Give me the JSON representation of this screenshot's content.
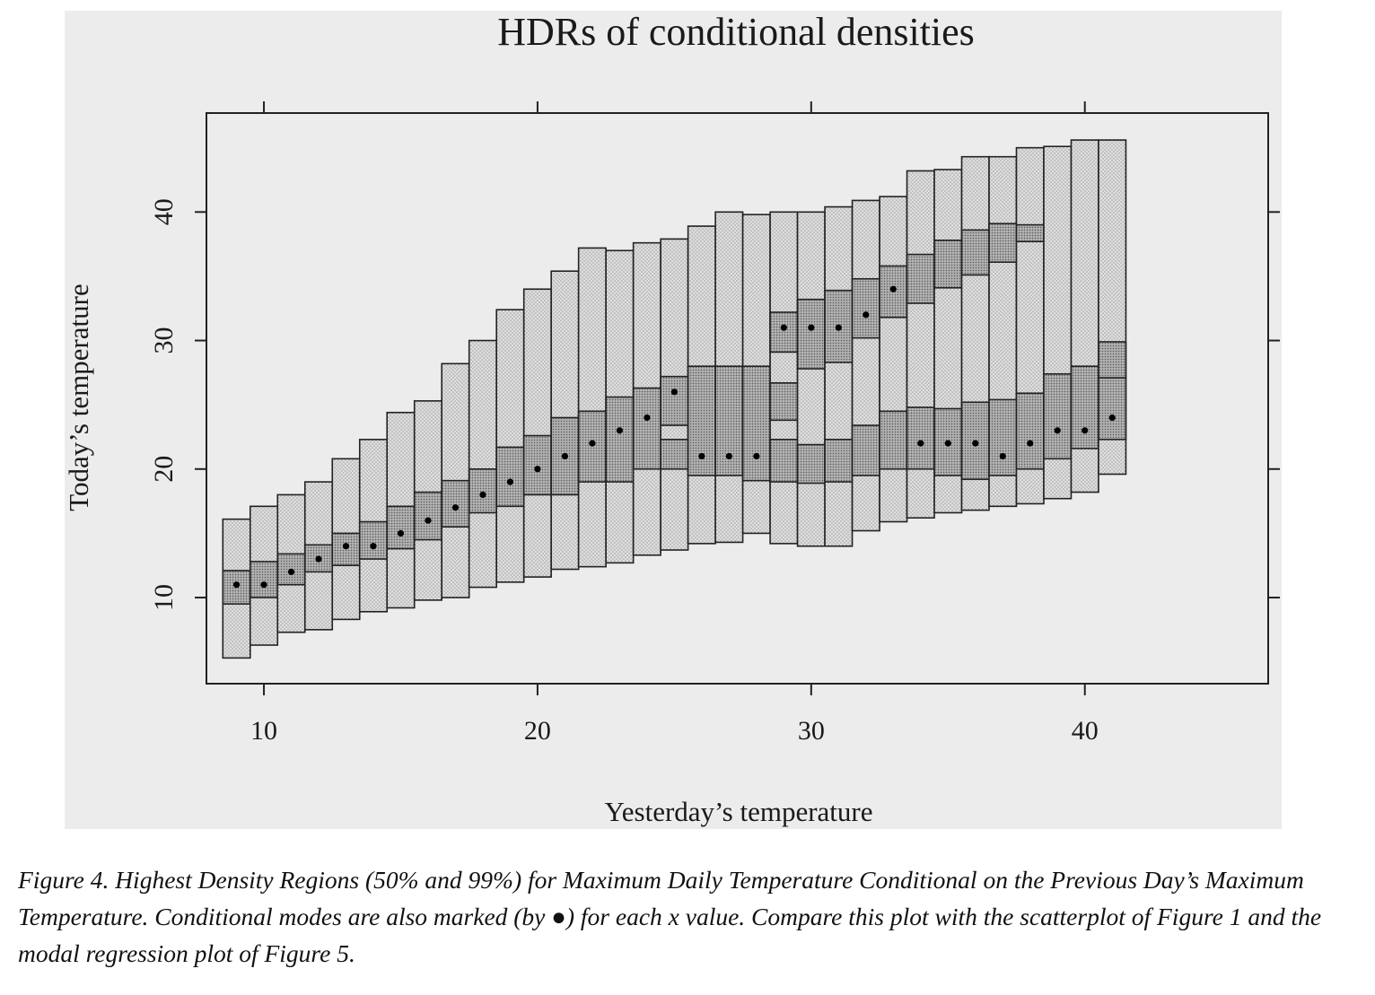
{
  "figure": {
    "caption": "Figure 4.  Highest Density Regions (50% and 99%) for Maximum Daily Temperature Conditional on the Previous Day’s Maximum Temperature. Conditional modes are also marked (by ●) for each x value. Compare this plot with the scatterplot of Figure 1 and the modal regression plot of Figure 5."
  },
  "chart_data": {
    "type": "hdr-boxplot",
    "title": "HDRs of conditional densities",
    "xlabel": "Yesterday’s temperature",
    "ylabel": "Today’s temperature",
    "xlim": [
      7.9,
      46.7
    ],
    "ylim": [
      3.3,
      47.7
    ],
    "x_ticks": [
      10,
      20,
      30,
      40
    ],
    "y_ticks": [
      10,
      20,
      30,
      40
    ],
    "grid": false,
    "colors": {
      "hdr99": "#d9d9d9",
      "hdr50": "#a8a8a8",
      "mode": "#000000",
      "axis": "#222222"
    },
    "bin_width": 1,
    "bins": [
      {
        "x": 9,
        "hdr99": [
          [
            5.3,
            16.1
          ]
        ],
        "hdr50": [
          [
            9.5,
            12.1
          ]
        ],
        "modes": [
          11.0
        ]
      },
      {
        "x": 10,
        "hdr99": [
          [
            6.3,
            17.1
          ]
        ],
        "hdr50": [
          [
            10.0,
            12.8
          ]
        ],
        "modes": [
          11.0
        ]
      },
      {
        "x": 11,
        "hdr99": [
          [
            7.3,
            18.0
          ]
        ],
        "hdr50": [
          [
            11.0,
            13.4
          ]
        ],
        "modes": [
          12.0
        ]
      },
      {
        "x": 12,
        "hdr99": [
          [
            7.5,
            19.0
          ]
        ],
        "hdr50": [
          [
            12.0,
            14.1
          ]
        ],
        "modes": [
          13.0
        ]
      },
      {
        "x": 13,
        "hdr99": [
          [
            8.3,
            20.8
          ]
        ],
        "hdr50": [
          [
            12.5,
            15.0
          ]
        ],
        "modes": [
          14.0
        ]
      },
      {
        "x": 14,
        "hdr99": [
          [
            8.9,
            22.3
          ]
        ],
        "hdr50": [
          [
            13.0,
            15.9
          ]
        ],
        "modes": [
          14.0
        ]
      },
      {
        "x": 15,
        "hdr99": [
          [
            9.2,
            24.4
          ]
        ],
        "hdr50": [
          [
            13.8,
            17.1
          ]
        ],
        "modes": [
          15.0
        ]
      },
      {
        "x": 16,
        "hdr99": [
          [
            9.8,
            25.3
          ]
        ],
        "hdr50": [
          [
            14.5,
            18.2
          ]
        ],
        "modes": [
          16.0
        ]
      },
      {
        "x": 17,
        "hdr99": [
          [
            10.0,
            28.2
          ]
        ],
        "hdr50": [
          [
            15.5,
            19.1
          ]
        ],
        "modes": [
          17.0
        ]
      },
      {
        "x": 18,
        "hdr99": [
          [
            10.8,
            30.0
          ]
        ],
        "hdr50": [
          [
            16.6,
            20.0
          ]
        ],
        "modes": [
          18.0
        ]
      },
      {
        "x": 19,
        "hdr99": [
          [
            11.2,
            32.4
          ]
        ],
        "hdr50": [
          [
            17.1,
            21.7
          ]
        ],
        "modes": [
          19.0
        ]
      },
      {
        "x": 20,
        "hdr99": [
          [
            11.6,
            34.0
          ]
        ],
        "hdr50": [
          [
            18.0,
            22.6
          ]
        ],
        "modes": [
          20.0
        ]
      },
      {
        "x": 21,
        "hdr99": [
          [
            12.2,
            35.4
          ]
        ],
        "hdr50": [
          [
            18.0,
            24.0
          ]
        ],
        "modes": [
          21.0
        ]
      },
      {
        "x": 22,
        "hdr99": [
          [
            12.4,
            37.2
          ]
        ],
        "hdr50": [
          [
            19.0,
            24.5
          ]
        ],
        "modes": [
          22.0
        ]
      },
      {
        "x": 23,
        "hdr99": [
          [
            12.7,
            37.0
          ]
        ],
        "hdr50": [
          [
            19.0,
            25.6
          ]
        ],
        "modes": [
          23.0
        ]
      },
      {
        "x": 24,
        "hdr99": [
          [
            13.3,
            37.6
          ]
        ],
        "hdr50": [
          [
            20.0,
            26.3
          ]
        ],
        "modes": [
          24.0
        ]
      },
      {
        "x": 25,
        "hdr99": [
          [
            13.7,
            37.9
          ]
        ],
        "hdr50": [
          [
            20.0,
            22.3
          ],
          [
            23.4,
            27.2
          ]
        ],
        "modes": [
          26.0
        ]
      },
      {
        "x": 26,
        "hdr99": [
          [
            14.2,
            38.9
          ]
        ],
        "hdr50": [
          [
            19.5,
            28.0
          ]
        ],
        "modes": [
          21.0
        ]
      },
      {
        "x": 27,
        "hdr99": [
          [
            14.3,
            40.0
          ]
        ],
        "hdr50": [
          [
            19.5,
            28.0
          ]
        ],
        "modes": [
          21.0
        ]
      },
      {
        "x": 28,
        "hdr99": [
          [
            15.0,
            39.8
          ]
        ],
        "hdr50": [
          [
            19.1,
            28.0
          ]
        ],
        "modes": [
          21.0
        ]
      },
      {
        "x": 29,
        "hdr99": [
          [
            14.2,
            40.0
          ]
        ],
        "hdr50": [
          [
            19.0,
            22.3
          ],
          [
            23.8,
            26.7
          ],
          [
            29.1,
            32.2
          ]
        ],
        "modes": [
          31.0
        ]
      },
      {
        "x": 30,
        "hdr99": [
          [
            14.0,
            40.0
          ]
        ],
        "hdr50": [
          [
            18.9,
            21.9
          ],
          [
            27.8,
            33.2
          ]
        ],
        "modes": [
          31.0
        ]
      },
      {
        "x": 31,
        "hdr99": [
          [
            14.0,
            40.4
          ]
        ],
        "hdr50": [
          [
            19.0,
            22.3
          ],
          [
            28.3,
            33.9
          ]
        ],
        "modes": [
          31.0
        ]
      },
      {
        "x": 32,
        "hdr99": [
          [
            15.2,
            40.9
          ]
        ],
        "hdr50": [
          [
            19.5,
            23.4
          ],
          [
            30.2,
            34.8
          ]
        ],
        "modes": [
          32.0
        ]
      },
      {
        "x": 33,
        "hdr99": [
          [
            15.9,
            41.2
          ]
        ],
        "hdr50": [
          [
            20.0,
            24.5
          ],
          [
            31.8,
            35.8
          ]
        ],
        "modes": [
          34.0
        ]
      },
      {
        "x": 34,
        "hdr99": [
          [
            16.2,
            43.2
          ]
        ],
        "hdr50": [
          [
            20.0,
            24.8
          ],
          [
            32.9,
            36.7
          ]
        ],
        "modes": [
          22.0
        ]
      },
      {
        "x": 35,
        "hdr99": [
          [
            16.6,
            43.3
          ]
        ],
        "hdr50": [
          [
            19.5,
            24.7
          ],
          [
            34.1,
            37.8
          ]
        ],
        "modes": [
          22.0
        ]
      },
      {
        "x": 36,
        "hdr99": [
          [
            16.8,
            44.3
          ]
        ],
        "hdr50": [
          [
            19.2,
            25.2
          ],
          [
            35.1,
            38.6
          ]
        ],
        "modes": [
          22.0
        ]
      },
      {
        "x": 37,
        "hdr99": [
          [
            17.1,
            44.3
          ]
        ],
        "hdr50": [
          [
            19.5,
            25.4
          ],
          [
            36.1,
            39.1
          ]
        ],
        "modes": [
          21.0
        ]
      },
      {
        "x": 38,
        "hdr99": [
          [
            17.3,
            45.0
          ]
        ],
        "hdr50": [
          [
            20.0,
            25.9
          ],
          [
            37.7,
            39.0
          ]
        ],
        "modes": [
          22.0
        ]
      },
      {
        "x": 39,
        "hdr99": [
          [
            17.7,
            45.1
          ]
        ],
        "hdr50": [
          [
            20.8,
            27.4
          ]
        ],
        "modes": [
          23.0
        ]
      },
      {
        "x": 40,
        "hdr99": [
          [
            18.2,
            45.6
          ]
        ],
        "hdr50": [
          [
            21.6,
            28.0
          ]
        ],
        "modes": [
          23.0
        ]
      },
      {
        "x": 41,
        "hdr99": [
          [
            19.6,
            45.6
          ]
        ],
        "hdr50": [
          [
            22.3,
            27.1
          ],
          [
            27.1,
            29.9
          ]
        ],
        "modes": [
          24.0
        ]
      }
    ]
  }
}
